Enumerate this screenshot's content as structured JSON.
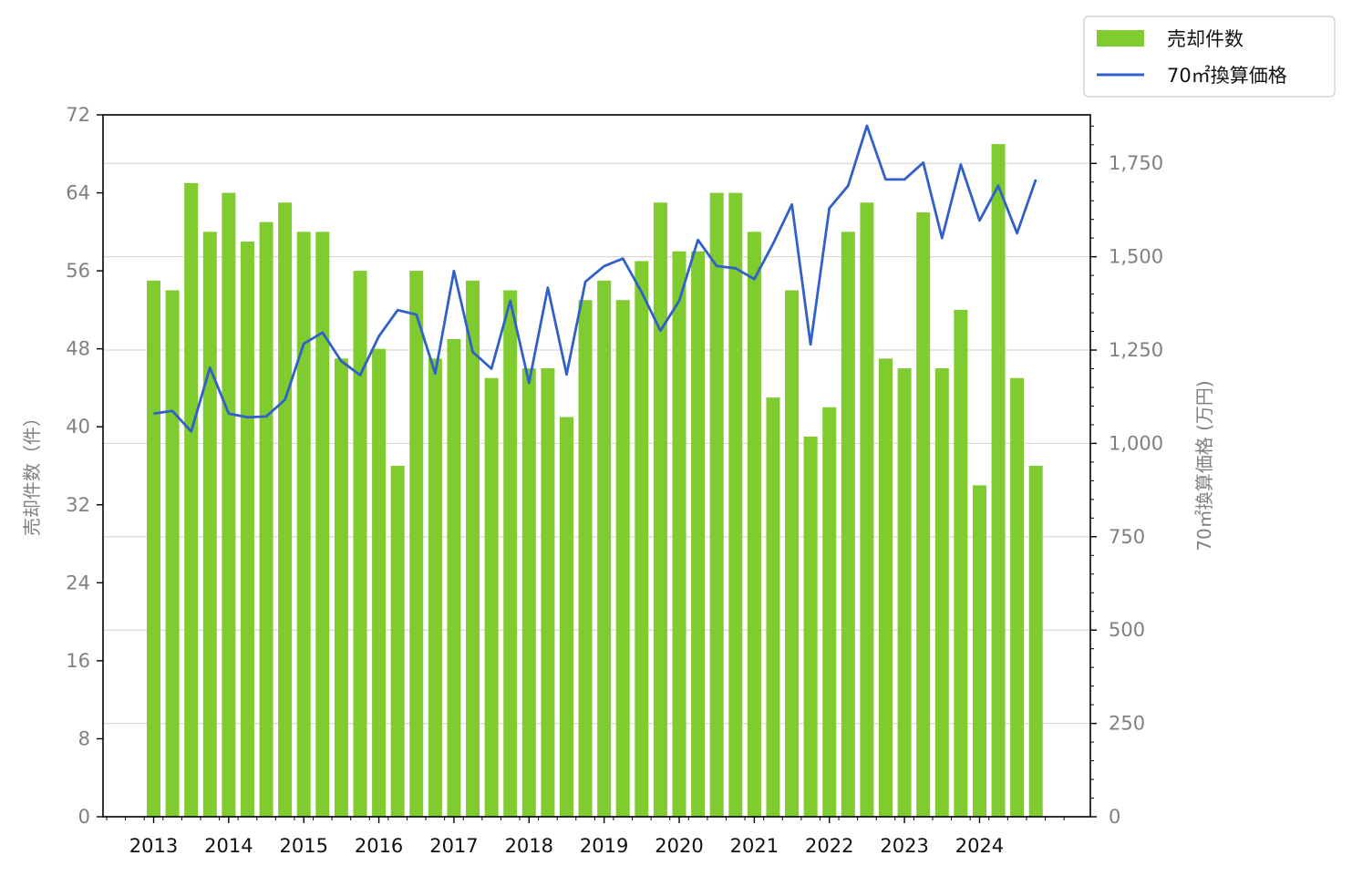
{
  "chart_data": {
    "type": "bar",
    "x_tick_labels": [
      "2013",
      "2014",
      "2015",
      "2016",
      "2017",
      "2018",
      "2019",
      "2020",
      "2021",
      "2022",
      "2023",
      "2024"
    ],
    "ylabel_left": "売却件数（件）",
    "ylabel_right": "70㎡換算価格 (万円)",
    "ylim_left": [
      0,
      72
    ],
    "yticks_left": [
      "0",
      "8",
      "16",
      "24",
      "32",
      "40",
      "48",
      "56",
      "64",
      "72"
    ],
    "ylim_right": [
      0,
      1880
    ],
    "yticks_right": [
      "0",
      "250",
      "500",
      "750",
      "1,000",
      "1,250",
      "1,500",
      "1,750"
    ],
    "grid": "horizontal, right axis",
    "legend_position": "top-right outside",
    "series": [
      {
        "name": "売却件数",
        "kind": "bar",
        "axis": "left",
        "color": "#7fcb30",
        "values": [
          55,
          54,
          65,
          60,
          64,
          59,
          61,
          63,
          60,
          60,
          47,
          56,
          48,
          36,
          56,
          47,
          49,
          55,
          45,
          54,
          46,
          46,
          41,
          53,
          55,
          53,
          57,
          63,
          58,
          58,
          64,
          64,
          60,
          43,
          54,
          39,
          42,
          60,
          63,
          47,
          46,
          62,
          46,
          52,
          34,
          69,
          45,
          36
        ]
      },
      {
        "name": "70㎡換算価格",
        "kind": "line",
        "axis": "right",
        "color": "#3060c8",
        "values": [
          1080,
          1087,
          1032,
          1203,
          1080,
          1070,
          1072,
          1117,
          1267,
          1297,
          1220,
          1183,
          1287,
          1357,
          1345,
          1187,
          1462,
          1245,
          1200,
          1382,
          1162,
          1417,
          1185,
          1433,
          1475,
          1495,
          1405,
          1302,
          1382,
          1545,
          1475,
          1469,
          1440,
          1535,
          1640,
          1265,
          1630,
          1690,
          1851,
          1707,
          1707,
          1752,
          1550,
          1747,
          1597,
          1690,
          1563,
          1707
        ]
      }
    ]
  }
}
